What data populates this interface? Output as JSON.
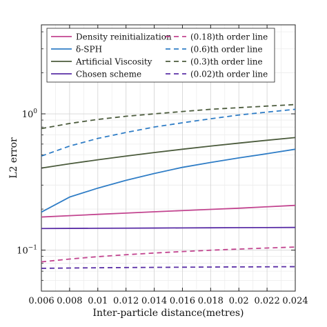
{
  "chart_data": {
    "type": "line",
    "xlabel": "Inter-particle distance(metres)",
    "ylabel": "L2 error",
    "xlim": [
      0.006,
      0.024
    ],
    "ylim": [
      0.05,
      4.5
    ],
    "yscale": "log",
    "grid": true,
    "legend_position": "top-left, two columns",
    "x_ticks": [
      0.006,
      0.008,
      0.01,
      0.012,
      0.014,
      0.016,
      0.018,
      0.02,
      0.022,
      0.024
    ],
    "x_tick_labels": [
      "0.006",
      "0.008",
      "0.01",
      "0.012",
      "0.014",
      "0.016",
      "0.018",
      "0.02",
      "0.022",
      "0.024"
    ],
    "y_major_ticks": [
      {
        "value": 0.1,
        "base": "10",
        "exp": "−1"
      },
      {
        "value": 1,
        "base": "10",
        "exp": "0"
      }
    ],
    "x": [
      0.006,
      0.008,
      0.01,
      0.012,
      0.014,
      0.016,
      0.018,
      0.02,
      0.022,
      0.024
    ],
    "series": [
      {
        "name": "Density reinitialization",
        "color": "#c2448f",
        "dash": "solid",
        "values": [
          0.175,
          0.179,
          0.183,
          0.187,
          0.191,
          0.195,
          0.199,
          0.203,
          0.208,
          0.213
        ]
      },
      {
        "name": "δ-SPH",
        "color": "#2f7dc6",
        "dash": "solid",
        "values": [
          0.19,
          0.245,
          0.285,
          0.325,
          0.365,
          0.405,
          0.44,
          0.475,
          0.51,
          0.55
        ]
      },
      {
        "name": "Artificial Viscosity",
        "color": "#4b5b3c",
        "dash": "solid",
        "values": [
          0.4,
          0.43,
          0.46,
          0.49,
          0.52,
          0.55,
          0.58,
          0.61,
          0.64,
          0.67
        ]
      },
      {
        "name": "Chosen scheme",
        "color": "#5a2ea6",
        "dash": "solid",
        "values": [
          0.144,
          0.1443,
          0.1446,
          0.1449,
          0.1452,
          0.1455,
          0.1458,
          0.1461,
          0.1464,
          0.1467
        ]
      },
      {
        "name": "(0.18)th order line",
        "color": "#c2448f",
        "dash": "dashed",
        "values": [
          0.082,
          0.086,
          0.0895,
          0.0925,
          0.0952,
          0.0976,
          0.0998,
          0.1018,
          0.1036,
          0.1053
        ]
      },
      {
        "name": "(0.6)th order line",
        "color": "#2f7dc6",
        "dash": "dashed",
        "values": [
          0.49,
          0.58,
          0.66,
          0.73,
          0.8,
          0.86,
          0.92,
          0.98,
          1.03,
          1.08
        ]
      },
      {
        "name": "(0.3)th order line",
        "color": "#4b5b3c",
        "dash": "dashed",
        "values": [
          0.78,
          0.85,
          0.91,
          0.96,
          1.0,
          1.04,
          1.08,
          1.11,
          1.14,
          1.17
        ]
      },
      {
        "name": "(0.02)th order line",
        "color": "#5a2ea6",
        "dash": "dashed",
        "values": [
          0.0735,
          0.0739,
          0.0742,
          0.0745,
          0.0747,
          0.0749,
          0.0751,
          0.0753,
          0.0754,
          0.0756
        ]
      }
    ]
  }
}
